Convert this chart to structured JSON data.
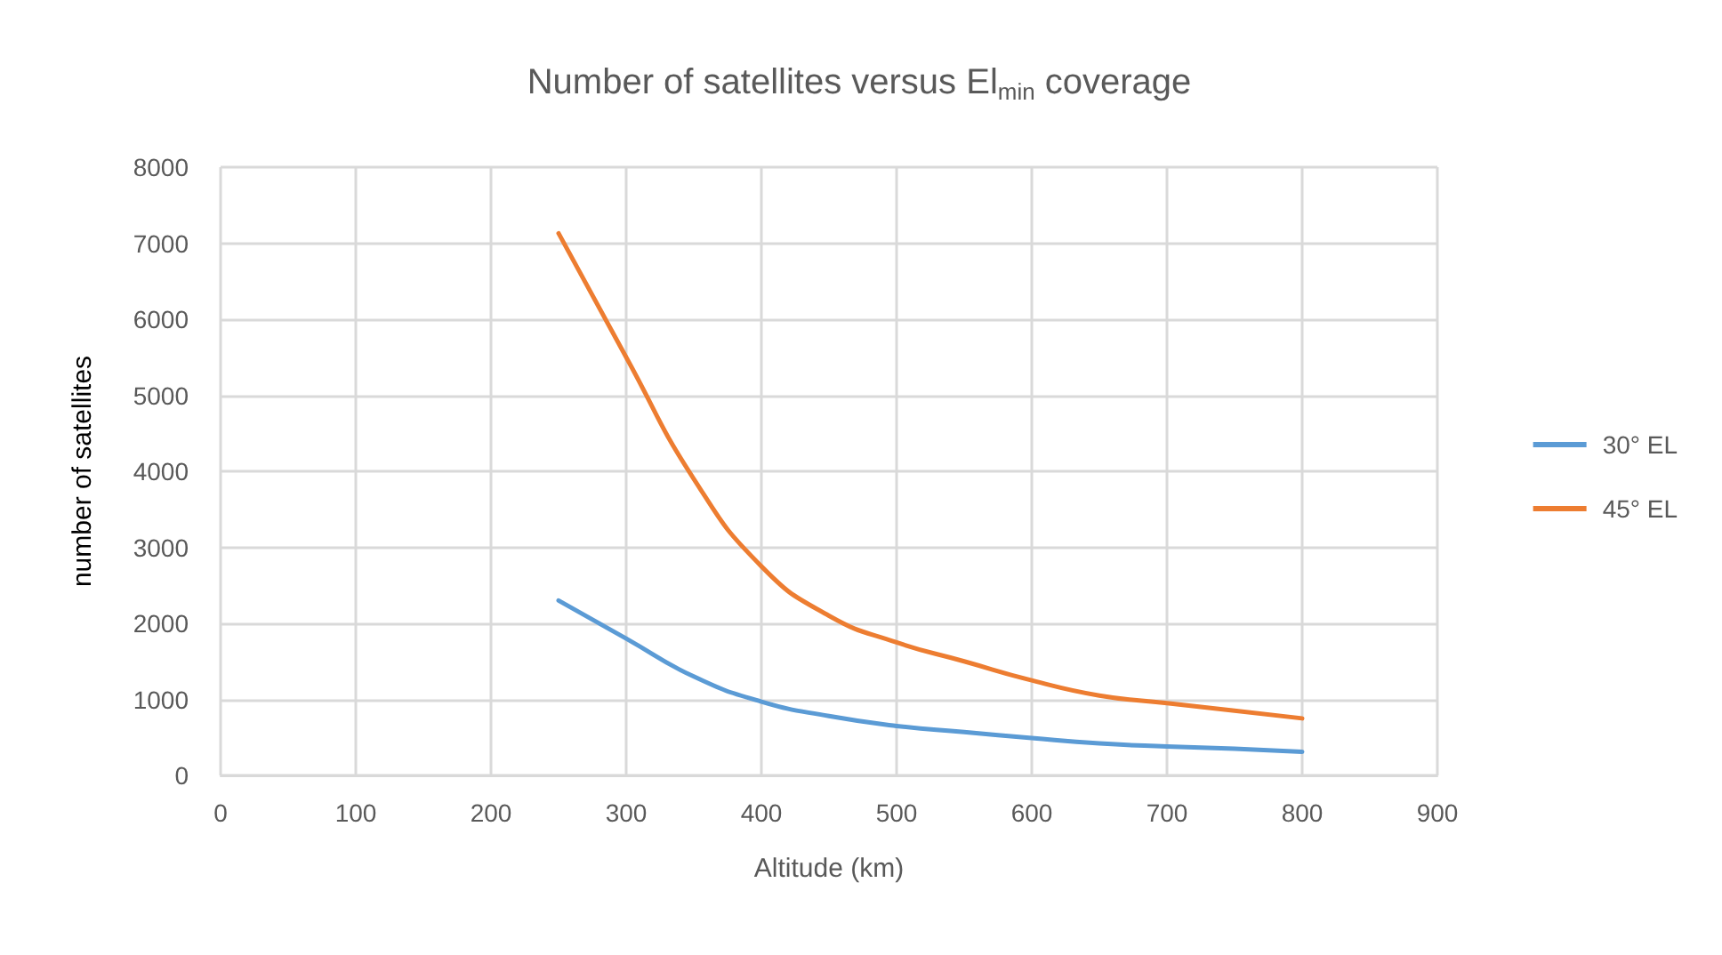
{
  "chart_data": {
    "type": "line",
    "title": "Number of satellites versus El$_{min}$ coverage",
    "xlabel": "Altitude (km)",
    "ylabel": "number of satellites",
    "x": [
      250,
      300,
      350,
      400,
      450,
      500,
      550,
      600,
      650,
      700,
      750,
      800
    ],
    "series": [
      {
        "name": "30° EL",
        "color": "#5b9bd5",
        "values": [
          2300,
          1800,
          1300,
          970,
          780,
          650,
          570,
          490,
          420,
          380,
          350,
          310
        ]
      },
      {
        "name": "45° EL",
        "color": "#ed7d31",
        "values": [
          7130,
          5500,
          3900,
          2750,
          2100,
          1750,
          1500,
          1250,
          1050,
          950,
          850,
          750
        ]
      }
    ],
    "xlim": [
      0,
      900
    ],
    "xticks": [
      0,
      100,
      200,
      300,
      400,
      500,
      600,
      700,
      800,
      900
    ],
    "ylim": [
      0,
      8000
    ],
    "yticks": [
      0,
      1000,
      2000,
      3000,
      4000,
      5000,
      6000,
      7000,
      8000
    ],
    "grid": true,
    "legend": "right",
    "marker": "none",
    "line_style": "solid"
  }
}
